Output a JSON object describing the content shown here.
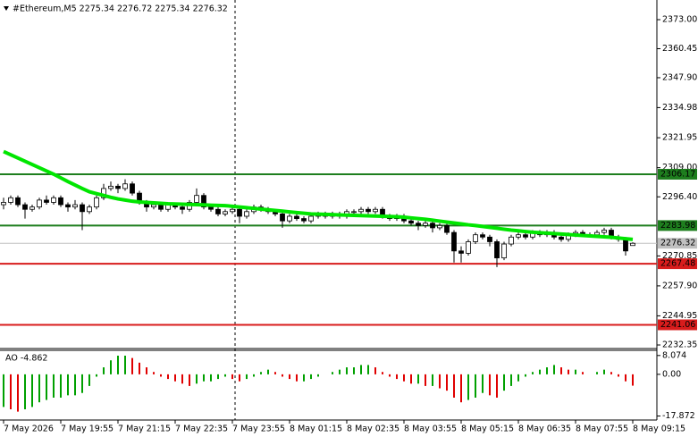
{
  "chart_data": [
    {
      "type": "candlestick",
      "title": "#Ethereum,M5  2275.34 2276.72 2275.34 2276.32",
      "categories": [
        "7 May 2026",
        null,
        null,
        null,
        null,
        null,
        null,
        null,
        "7 May 19:55",
        null,
        null,
        null,
        null,
        null,
        null,
        null,
        "7 May 21:15",
        null,
        null,
        null,
        null,
        null,
        null,
        null,
        "7 May 22:35",
        null,
        null,
        null,
        null,
        null,
        null,
        null,
        "7 May 23:55",
        null,
        null,
        null,
        null,
        null,
        null,
        null,
        "8 May 01:15",
        null,
        null,
        null,
        null,
        null,
        null,
        null,
        "8 May 02:35",
        null,
        null,
        null,
        null,
        null,
        null,
        null,
        "8 May 03:55",
        null,
        null,
        null,
        null,
        null,
        null,
        null,
        "8 May 05:15",
        null,
        null,
        null,
        null,
        null,
        null,
        null,
        "8 May 06:35",
        null,
        null,
        null,
        null,
        null,
        null,
        null,
        "8 May 07:55",
        null,
        null,
        null,
        null,
        null,
        null,
        null,
        "8 May 09:15"
      ],
      "values": [
        [
          2293,
          2296,
          2291,
          2294
        ],
        [
          2294,
          2297,
          2293,
          2296
        ],
        [
          2296,
          2297,
          2292,
          2293
        ],
        [
          2293,
          2294,
          2287,
          2291
        ],
        [
          2291,
          2293,
          2290,
          2292
        ],
        [
          2292,
          2296,
          2291,
          2295
        ],
        [
          2295,
          2297,
          2293,
          2294
        ],
        [
          2294,
          2297,
          2293,
          2296
        ],
        [
          2296,
          2297,
          2292,
          2293
        ],
        [
          2293,
          2294,
          2290,
          2292
        ],
        [
          2292,
          2295,
          2291,
          2293
        ],
        [
          2293,
          2294,
          2282,
          2290
        ],
        [
          2290,
          2293,
          2289,
          2292
        ],
        [
          2292,
          2297,
          2291,
          2296
        ],
        [
          2296,
          2302,
          2295,
          2300
        ],
        [
          2300,
          2303,
          2299,
          2301
        ],
        [
          2301,
          2302,
          2298,
          2300
        ],
        [
          2300,
          2304,
          2299,
          2302
        ],
        [
          2302,
          2303,
          2297,
          2298
        ],
        [
          2298,
          2299,
          2293,
          2294
        ],
        [
          2294,
          2295,
          2290,
          2292
        ],
        [
          2292,
          2294,
          2291,
          2293
        ],
        [
          2293,
          2294,
          2290,
          2291
        ],
        [
          2291,
          2294,
          2290,
          2293
        ],
        [
          2293,
          2294,
          2291,
          2292
        ],
        [
          2292,
          2293,
          2289,
          2291
        ],
        [
          2291,
          2295,
          2290,
          2294
        ],
        [
          2294,
          2300,
          2293,
          2297
        ],
        [
          2297,
          2298,
          2291,
          2292
        ],
        [
          2292,
          2293,
          2290,
          2291
        ],
        [
          2291,
          2292,
          2288,
          2289
        ],
        [
          2289,
          2291,
          2288,
          2290
        ],
        [
          2290,
          2292,
          2289,
          2291
        ],
        [
          2291,
          2292,
          2285,
          2288
        ],
        [
          2288,
          2291,
          2287,
          2290
        ],
        [
          2290,
          2293,
          2289,
          2292
        ],
        [
          2292,
          2293,
          2290,
          2291
        ],
        [
          2291,
          2292,
          2289,
          2290
        ],
        [
          2290,
          2291,
          2288,
          2289
        ],
        [
          2289,
          2290,
          2283,
          2286
        ],
        [
          2286,
          2289,
          2285,
          2288
        ],
        [
          2288,
          2289,
          2286,
          2287
        ],
        [
          2287,
          2288,
          2285,
          2286
        ],
        [
          2286,
          2289,
          2285,
          2288
        ],
        [
          2288,
          2290,
          2287,
          2289
        ],
        [
          2289,
          2290,
          2287,
          2288
        ],
        [
          2288,
          2290,
          2287,
          2289
        ],
        [
          2289,
          2290,
          2287,
          2288
        ],
        [
          2288,
          2291,
          2287,
          2290
        ],
        [
          2290,
          2291,
          2289,
          2290
        ],
        [
          2290,
          2292,
          2289,
          2291
        ],
        [
          2291,
          2292,
          2289,
          2290
        ],
        [
          2290,
          2292,
          2289,
          2291
        ],
        [
          2291,
          2292,
          2287,
          2288
        ],
        [
          2288,
          2289,
          2286,
          2287
        ],
        [
          2287,
          2289,
          2286,
          2288
        ],
        [
          2288,
          2289,
          2285,
          2286
        ],
        [
          2286,
          2287,
          2284,
          2285
        ],
        [
          2285,
          2286,
          2282,
          2284
        ],
        [
          2284,
          2286,
          2283,
          2285
        ],
        [
          2285,
          2286,
          2281,
          2283
        ],
        [
          2283,
          2285,
          2282,
          2284
        ],
        [
          2284,
          2285,
          2280,
          2281
        ],
        [
          2281,
          2282,
          2268,
          2273
        ],
        [
          2273,
          2275,
          2268,
          2272
        ],
        [
          2272,
          2278,
          2271,
          2277
        ],
        [
          2277,
          2281,
          2276,
          2280
        ],
        [
          2280,
          2281,
          2278,
          2279
        ],
        [
          2279,
          2280,
          2275,
          2277
        ],
        [
          2277,
          2278,
          2266,
          2270
        ],
        [
          2270,
          2277,
          2269,
          2276
        ],
        [
          2276,
          2280,
          2275,
          2279
        ],
        [
          2279,
          2281,
          2278,
          2280
        ],
        [
          2280,
          2281,
          2278,
          2279
        ],
        [
          2279,
          2282,
          2278,
          2281
        ],
        [
          2281,
          2282,
          2279,
          2280
        ],
        [
          2280,
          2282,
          2279,
          2281
        ],
        [
          2281,
          2282,
          2278,
          2279
        ],
        [
          2279,
          2280,
          2277,
          2278
        ],
        [
          2278,
          2281,
          2277,
          2280
        ],
        [
          2280,
          2282,
          2279,
          2281
        ],
        [
          2281,
          2282,
          2279,
          2280
        ],
        [
          2280,
          2281,
          2279,
          2280
        ],
        [
          2280,
          2282,
          2279,
          2281
        ],
        [
          2281,
          2283,
          2280,
          2282
        ],
        [
          2282,
          2283,
          2278,
          2279
        ],
        [
          2279,
          2280,
          2277,
          2278
        ],
        [
          2278,
          2279,
          2271,
          2273
        ],
        [
          2275.34,
          2276.72,
          2275.34,
          2276.32
        ]
      ],
      "ma": [
        2316,
        2314.6,
        2313.2,
        2311.8,
        2310.4,
        2309,
        2307.6,
        2306.2,
        2304.6,
        2303,
        2301.5,
        2300,
        2298.6,
        2297.8,
        2297,
        2296.2,
        2295.5,
        2295,
        2294.5,
        2294.2,
        2294,
        2293.8,
        2293.6,
        2293.4,
        2293.3,
        2293.2,
        2293.1,
        2293,
        2292.9,
        2292.8,
        2292.7,
        2292.6,
        2292.3,
        2292,
        2291.7,
        2291.4,
        2291.1,
        2290.8,
        2290.5,
        2290.2,
        2289.9,
        2289.6,
        2289.3,
        2289,
        2288.9,
        2288.8,
        2288.7,
        2288.6,
        2288.5,
        2288.4,
        2288.3,
        2288.2,
        2288.1,
        2288,
        2287.9,
        2287.8,
        2287.6,
        2287.3,
        2287,
        2286.7,
        2286.3,
        2285.9,
        2285.5,
        2285.1,
        2284.7,
        2284.3,
        2284,
        2283.6,
        2283.2,
        2282.8,
        2282.4,
        2282,
        2281.7,
        2281.4,
        2281.1,
        2280.9,
        2280.7,
        2280.5,
        2280.3,
        2280.1,
        2279.9,
        2279.7,
        2279.5,
        2279.3,
        2279.1,
        2278.9,
        2278.6,
        2278.3,
        2278
      ],
      "ma_color": "#00e600",
      "up_color": "#ffffff",
      "down_color": "#000000",
      "levels": [
        {
          "value": 2306.17,
          "color": "#1e7e1e"
        },
        {
          "value": 2283.98,
          "color": "#1e7e1e"
        },
        {
          "value": 2267.48,
          "color": "#d81c1c"
        },
        {
          "value": 2241.06,
          "color": "#d81c1c"
        }
      ],
      "last_color": "#c0c0c0",
      "ylim": [
        2231.2,
        2381.5
      ],
      "yticks": [
        {
          "value": 2373,
          "label": "2373.00"
        },
        2360.45,
        {
          "value": 2347.9,
          "label": "2347.90"
        },
        2334.98,
        2321.95,
        {
          "value": 2309,
          "label": "2309.00"
        },
        {
          "value": 2296.4,
          "label": "2296.40"
        },
        2270.85,
        {
          "value": 2257.9,
          "label": "2257.90"
        },
        2244.95,
        2232.35
      ]
    },
    {
      "type": "bar",
      "title": "AO -4.862",
      "values": [
        -14,
        -15,
        -16,
        -15,
        -14,
        -12,
        -11,
        -10,
        -10,
        -9,
        -9,
        -8,
        -5,
        -1,
        3,
        6,
        8,
        8,
        7,
        5,
        3,
        1,
        -1,
        -2,
        -3,
        -4,
        -5,
        -4,
        -3,
        -3,
        -2,
        -1,
        -2,
        -3,
        -2,
        -1,
        1,
        2,
        1,
        -1,
        -2,
        -3,
        -3,
        -2,
        -1,
        0,
        1,
        2,
        3,
        3,
        4,
        4,
        3,
        1,
        -1,
        -2,
        -3,
        -4,
        -4,
        -5,
        -5,
        -6,
        -7,
        -10,
        -12,
        -11,
        -10,
        -8,
        -9,
        -10,
        -7,
        -5,
        -3,
        -1,
        1,
        2,
        3,
        4,
        3,
        2,
        2,
        1,
        0,
        1,
        2,
        1,
        -1,
        -3,
        -4.862
      ],
      "up_color": "#00a000",
      "down_color": "#e00000",
      "ylim": [
        -19.6,
        10.3
      ],
      "yticks": [
        8.074,
        {
          "value": 0,
          "label": "0.00"
        },
        -17.872
      ]
    }
  ]
}
